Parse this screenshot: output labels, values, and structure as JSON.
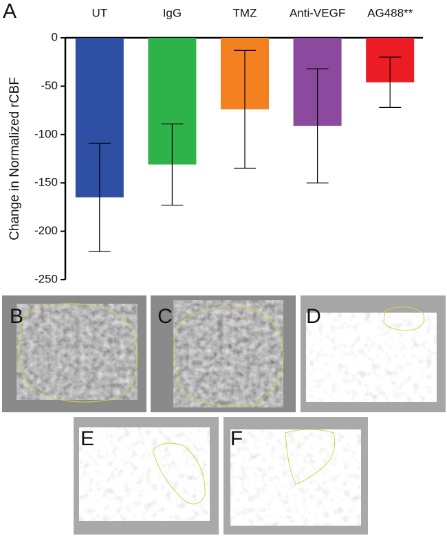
{
  "chart_data": {
    "type": "bar",
    "panel_label": "A",
    "ylabel": "Change in Normalized  rCBF",
    "categories": [
      "UT",
      "IgG",
      "TMZ",
      "Anti-VEGF",
      "AG488**"
    ],
    "values": [
      -165,
      -131,
      -74,
      -91,
      -46
    ],
    "errors": [
      56,
      42,
      61,
      59,
      26
    ],
    "colors": [
      "#2e4fa3",
      "#2db34a",
      "#f38120",
      "#8b4a9d",
      "#ec1c24"
    ],
    "ylim": [
      -250,
      0
    ],
    "yticks": [
      0,
      -50,
      -100,
      -150,
      -200,
      -250
    ]
  },
  "image_panels": {
    "labels": [
      "B",
      "C",
      "D",
      "E",
      "F"
    ]
  }
}
